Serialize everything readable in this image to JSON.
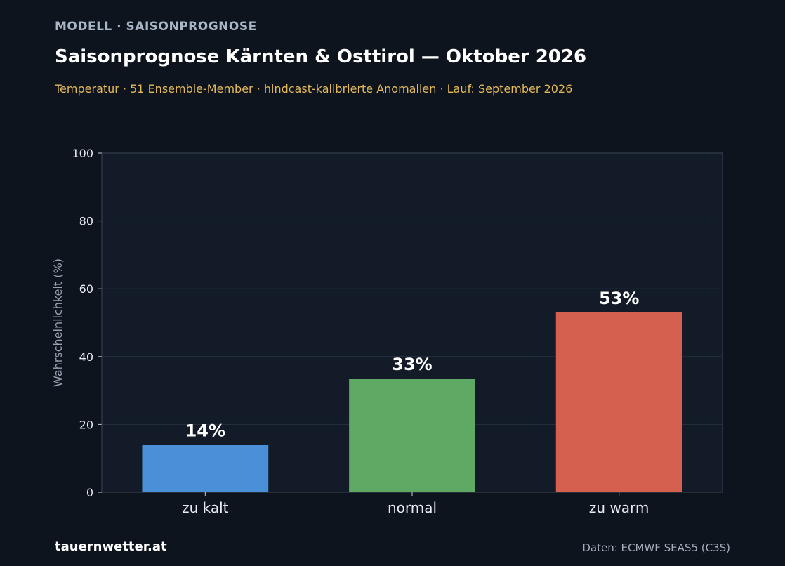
{
  "header": {
    "kicker": "MODELL · SAISONPROGNOSE",
    "title": "Saisonprognose Kärnten & Osttirol — Oktober 2026",
    "subtitle": "Temperatur · 51 Ensemble-Member · hindcast-kalibrierte Anomalien · Lauf: September 2026"
  },
  "footer": {
    "brand": "tauernwetter.at",
    "source": "Daten: ECMWF SEAS5 (C3S)"
  },
  "colors": {
    "background": "#0e141d",
    "plot_background": "#121b27",
    "grid": "#263140",
    "axis": "#3a4656",
    "cold": "#4a90d9",
    "normal": "#5ea963",
    "warm": "#d6604f",
    "subtitle": "#e3b95a"
  },
  "chart_data": {
    "type": "bar",
    "categories": [
      "zu kalt",
      "normal",
      "zu warm"
    ],
    "values": [
      14,
      33.5,
      53
    ],
    "labels": [
      "14%",
      "33%",
      "53%"
    ],
    "ylabel": "Wahrscheinlichkeit (%)",
    "ylim": [
      0,
      100
    ],
    "yticks": [
      0,
      20,
      40,
      60,
      80,
      100
    ],
    "grid": true
  }
}
